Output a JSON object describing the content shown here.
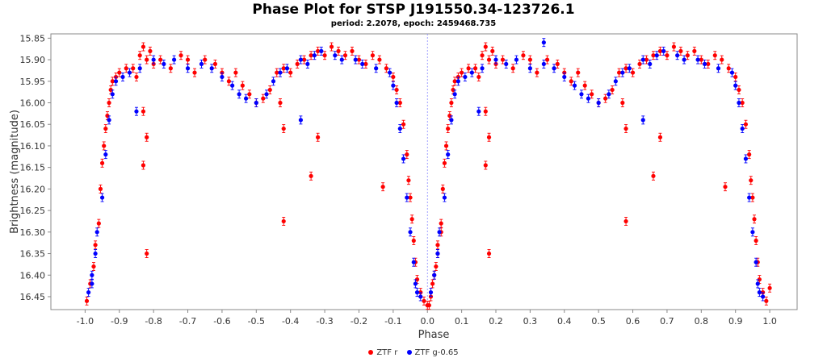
{
  "chart_data": {
    "type": "scatter",
    "title": "Phase Plot for STSP J191550.34-123726.1",
    "subtitle": "period: 2.2078, epoch: 2459468.735",
    "xlabel": "Phase",
    "ylabel": "Brightness (magnitude)",
    "xlim": [
      -1.1,
      1.08
    ],
    "ylim": [
      16.48,
      15.84
    ],
    "y_inverted": true,
    "x_ticks": [
      "-1.0",
      "-0.9",
      "-0.8",
      "-0.7",
      "-0.6",
      "-0.5",
      "-0.4",
      "-0.3",
      "-0.2",
      "-0.1",
      "0.0",
      "0.1",
      "0.2",
      "0.3",
      "0.4",
      "0.5",
      "0.6",
      "0.7",
      "0.8",
      "0.9",
      "1.0"
    ],
    "y_ticks": [
      "15.85",
      "15.90",
      "15.95",
      "16.00",
      "16.05",
      "16.10",
      "16.15",
      "16.20",
      "16.25",
      "16.30",
      "16.35",
      "16.40",
      "16.45"
    ],
    "grid": false,
    "legend_position": "bottom",
    "series": [
      {
        "name": "ZTF r",
        "color": "#ff0000",
        "points": [
          [
            -0.995,
            16.46
          ],
          [
            -0.985,
            16.42
          ],
          [
            -0.975,
            16.38
          ],
          [
            -0.97,
            16.33
          ],
          [
            -0.96,
            16.28
          ],
          [
            -0.955,
            16.2
          ],
          [
            -0.95,
            16.14
          ],
          [
            -0.945,
            16.1
          ],
          [
            -0.94,
            16.06
          ],
          [
            -0.935,
            16.03
          ],
          [
            -0.93,
            16.0
          ],
          [
            -0.925,
            15.97
          ],
          [
            -0.92,
            15.95
          ],
          [
            -0.91,
            15.94
          ],
          [
            -0.9,
            15.93
          ],
          [
            -0.88,
            15.92
          ],
          [
            -0.86,
            15.92
          ],
          [
            -0.85,
            15.94
          ],
          [
            -0.84,
            15.89
          ],
          [
            -0.83,
            15.87
          ],
          [
            -0.82,
            15.9
          ],
          [
            -0.81,
            15.88
          ],
          [
            -0.8,
            15.91
          ],
          [
            -0.78,
            15.9
          ],
          [
            -0.75,
            15.92
          ],
          [
            -0.72,
            15.89
          ],
          [
            -0.7,
            15.9
          ],
          [
            -0.68,
            15.93
          ],
          [
            -0.65,
            15.9
          ],
          [
            -0.62,
            15.91
          ],
          [
            -0.6,
            15.93
          ],
          [
            -0.58,
            15.95
          ],
          [
            -0.56,
            15.93
          ],
          [
            -0.54,
            15.96
          ],
          [
            -0.52,
            15.98
          ],
          [
            -0.5,
            16.0
          ],
          [
            -0.48,
            15.99
          ],
          [
            -0.46,
            15.97
          ],
          [
            -0.44,
            15.93
          ],
          [
            -0.42,
            15.92
          ],
          [
            -0.4,
            15.93
          ],
          [
            -0.38,
            15.91
          ],
          [
            -0.36,
            15.9
          ],
          [
            -0.34,
            15.89
          ],
          [
            -0.32,
            15.88
          ],
          [
            -0.3,
            15.89
          ],
          [
            -0.28,
            15.87
          ],
          [
            -0.26,
            15.88
          ],
          [
            -0.24,
            15.89
          ],
          [
            -0.22,
            15.88
          ],
          [
            -0.2,
            15.9
          ],
          [
            -0.18,
            15.91
          ],
          [
            -0.16,
            15.89
          ],
          [
            -0.14,
            15.9
          ],
          [
            -0.12,
            15.92
          ],
          [
            -0.1,
            15.94
          ],
          [
            -0.09,
            15.97
          ],
          [
            -0.08,
            16.0
          ],
          [
            -0.07,
            16.05
          ],
          [
            -0.06,
            16.12
          ],
          [
            -0.055,
            16.18
          ],
          [
            -0.05,
            16.22
          ],
          [
            -0.045,
            16.27
          ],
          [
            -0.04,
            16.32
          ],
          [
            -0.035,
            16.37
          ],
          [
            -0.03,
            16.41
          ],
          [
            -0.02,
            16.44
          ],
          [
            -0.01,
            16.46
          ],
          [
            0.0,
            16.47
          ],
          [
            0.01,
            16.45
          ],
          [
            0.02,
            16.4
          ],
          [
            0.03,
            16.35
          ],
          [
            0.04,
            16.3
          ],
          [
            -0.83,
            16.145
          ],
          [
            -0.82,
            16.35
          ],
          [
            -0.82,
            16.08
          ],
          [
            -0.83,
            16.02
          ],
          [
            -0.42,
            16.275
          ],
          [
            -0.42,
            16.06
          ],
          [
            -0.34,
            16.17
          ],
          [
            -0.32,
            16.08
          ],
          [
            -0.13,
            16.195
          ],
          [
            -0.43,
            16.0
          ],
          [
            0.005,
            16.47
          ],
          [
            0.015,
            16.42
          ],
          [
            0.025,
            16.38
          ],
          [
            0.03,
            16.33
          ],
          [
            0.04,
            16.28
          ],
          [
            0.045,
            16.2
          ],
          [
            0.05,
            16.14
          ],
          [
            0.055,
            16.1
          ],
          [
            0.06,
            16.06
          ],
          [
            0.065,
            16.03
          ],
          [
            0.07,
            16.0
          ],
          [
            0.075,
            15.97
          ],
          [
            0.08,
            15.95
          ],
          [
            0.09,
            15.94
          ],
          [
            0.1,
            15.93
          ],
          [
            0.12,
            15.92
          ],
          [
            0.14,
            15.92
          ],
          [
            0.15,
            15.94
          ],
          [
            0.16,
            15.89
          ],
          [
            0.17,
            15.87
          ],
          [
            0.18,
            15.9
          ],
          [
            0.19,
            15.88
          ],
          [
            0.2,
            15.91
          ],
          [
            0.22,
            15.9
          ],
          [
            0.25,
            15.92
          ],
          [
            0.28,
            15.89
          ],
          [
            0.3,
            15.9
          ],
          [
            0.32,
            15.93
          ],
          [
            0.35,
            15.9
          ],
          [
            0.38,
            15.91
          ],
          [
            0.4,
            15.93
          ],
          [
            0.42,
            15.95
          ],
          [
            0.44,
            15.93
          ],
          [
            0.46,
            15.96
          ],
          [
            0.48,
            15.98
          ],
          [
            0.5,
            16.0
          ],
          [
            0.52,
            15.99
          ],
          [
            0.54,
            15.97
          ],
          [
            0.56,
            15.93
          ],
          [
            0.58,
            15.92
          ],
          [
            0.6,
            15.93
          ],
          [
            0.62,
            15.91
          ],
          [
            0.64,
            15.9
          ],
          [
            0.66,
            15.89
          ],
          [
            0.68,
            15.88
          ],
          [
            0.7,
            15.89
          ],
          [
            0.72,
            15.87
          ],
          [
            0.74,
            15.88
          ],
          [
            0.76,
            15.89
          ],
          [
            0.78,
            15.88
          ],
          [
            0.8,
            15.9
          ],
          [
            0.82,
            15.91
          ],
          [
            0.84,
            15.89
          ],
          [
            0.86,
            15.9
          ],
          [
            0.88,
            15.92
          ],
          [
            0.9,
            15.94
          ],
          [
            0.91,
            15.97
          ],
          [
            0.92,
            16.0
          ],
          [
            0.93,
            16.05
          ],
          [
            0.94,
            16.12
          ],
          [
            0.945,
            16.18
          ],
          [
            0.95,
            16.22
          ],
          [
            0.955,
            16.27
          ],
          [
            0.96,
            16.32
          ],
          [
            0.965,
            16.37
          ],
          [
            0.97,
            16.41
          ],
          [
            0.98,
            16.44
          ],
          [
            0.99,
            16.46
          ],
          [
            1.0,
            16.43
          ],
          [
            0.17,
            16.145
          ],
          [
            0.18,
            16.35
          ],
          [
            0.18,
            16.08
          ],
          [
            0.17,
            16.02
          ],
          [
            0.58,
            16.275
          ],
          [
            0.58,
            16.06
          ],
          [
            0.66,
            16.17
          ],
          [
            0.68,
            16.08
          ],
          [
            0.87,
            16.195
          ],
          [
            0.57,
            16.0
          ]
        ]
      },
      {
        "name": "ZTF g-0.65",
        "color": "#0000ff",
        "points": [
          [
            -0.99,
            16.44
          ],
          [
            -0.98,
            16.4
          ],
          [
            -0.97,
            16.35
          ],
          [
            -0.965,
            16.3
          ],
          [
            -0.95,
            16.22
          ],
          [
            -0.94,
            16.12
          ],
          [
            -0.93,
            16.04
          ],
          [
            -0.92,
            15.98
          ],
          [
            -0.91,
            15.95
          ],
          [
            -0.89,
            15.94
          ],
          [
            -0.87,
            15.93
          ],
          [
            -0.85,
            16.02
          ],
          [
            -0.84,
            15.92
          ],
          [
            -0.8,
            15.9
          ],
          [
            -0.77,
            15.91
          ],
          [
            -0.74,
            15.9
          ],
          [
            -0.7,
            15.92
          ],
          [
            -0.66,
            15.91
          ],
          [
            -0.63,
            15.92
          ],
          [
            -0.6,
            15.94
          ],
          [
            -0.57,
            15.96
          ],
          [
            -0.55,
            15.98
          ],
          [
            -0.53,
            15.99
          ],
          [
            -0.5,
            16.0
          ],
          [
            -0.47,
            15.98
          ],
          [
            -0.45,
            15.95
          ],
          [
            -0.43,
            15.93
          ],
          [
            -0.41,
            15.92
          ],
          [
            -0.37,
            15.9
          ],
          [
            -0.35,
            15.91
          ],
          [
            -0.33,
            15.89
          ],
          [
            -0.31,
            15.88
          ],
          [
            -0.27,
            15.89
          ],
          [
            -0.25,
            15.9
          ],
          [
            -0.21,
            15.9
          ],
          [
            -0.19,
            15.91
          ],
          [
            -0.15,
            15.92
          ],
          [
            -0.11,
            15.93
          ],
          [
            -0.1,
            15.96
          ],
          [
            -0.09,
            16.0
          ],
          [
            -0.08,
            16.06
          ],
          [
            -0.07,
            16.13
          ],
          [
            -0.06,
            16.22
          ],
          [
            -0.05,
            16.3
          ],
          [
            -0.04,
            16.37
          ],
          [
            -0.035,
            16.42
          ],
          [
            -0.03,
            16.44
          ],
          [
            -0.02,
            16.45
          ],
          [
            -0.37,
            16.04
          ],
          [
            -0.98,
            16.42
          ],
          [
            0.01,
            16.44
          ],
          [
            0.02,
            16.4
          ],
          [
            0.03,
            16.35
          ],
          [
            0.035,
            16.3
          ],
          [
            0.05,
            16.22
          ],
          [
            0.06,
            16.12
          ],
          [
            0.07,
            16.04
          ],
          [
            0.08,
            15.98
          ],
          [
            0.09,
            15.95
          ],
          [
            0.11,
            15.94
          ],
          [
            0.13,
            15.93
          ],
          [
            0.15,
            16.02
          ],
          [
            0.16,
            15.92
          ],
          [
            0.2,
            15.9
          ],
          [
            0.23,
            15.91
          ],
          [
            0.26,
            15.9
          ],
          [
            0.3,
            15.92
          ],
          [
            0.34,
            15.91
          ],
          [
            0.37,
            15.92
          ],
          [
            0.4,
            15.94
          ],
          [
            0.43,
            15.96
          ],
          [
            0.45,
            15.98
          ],
          [
            0.47,
            15.99
          ],
          [
            0.5,
            16.0
          ],
          [
            0.53,
            15.98
          ],
          [
            0.55,
            15.95
          ],
          [
            0.57,
            15.93
          ],
          [
            0.59,
            15.92
          ],
          [
            0.63,
            15.9
          ],
          [
            0.65,
            15.91
          ],
          [
            0.67,
            15.89
          ],
          [
            0.69,
            15.88
          ],
          [
            0.73,
            15.89
          ],
          [
            0.75,
            15.9
          ],
          [
            0.79,
            15.9
          ],
          [
            0.81,
            15.91
          ],
          [
            0.85,
            15.92
          ],
          [
            0.89,
            15.93
          ],
          [
            0.9,
            15.96
          ],
          [
            0.91,
            16.0
          ],
          [
            0.92,
            16.06
          ],
          [
            0.93,
            16.13
          ],
          [
            0.94,
            16.22
          ],
          [
            0.95,
            16.3
          ],
          [
            0.96,
            16.37
          ],
          [
            0.965,
            16.42
          ],
          [
            0.97,
            16.44
          ],
          [
            0.98,
            16.45
          ],
          [
            0.63,
            16.04
          ],
          [
            0.34,
            15.86
          ]
        ]
      }
    ]
  }
}
